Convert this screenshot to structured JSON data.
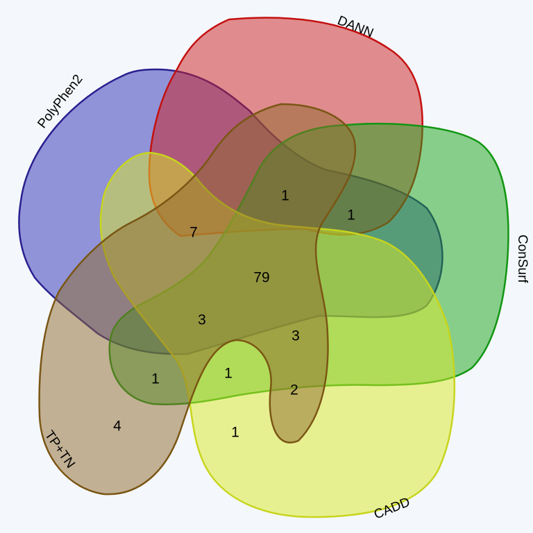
{
  "sets": {
    "polyphen2": {
      "label": "PolyPhen2",
      "fill": "#2b2fb4",
      "stroke": "#2a1f8f"
    },
    "dann": {
      "label": "DANN",
      "fill": "#cc1f1f",
      "stroke": "#c41010"
    },
    "consurf": {
      "label": "ConSurf",
      "fill": "#1ca51c",
      "stroke": "#129612"
    },
    "cadd": {
      "label": "CADD",
      "fill": "#d9ea28",
      "stroke": "#c7d51d"
    },
    "tptn": {
      "label": "TP+TN",
      "fill": "#8d6a2e",
      "stroke": "#7a5614"
    }
  },
  "regions": {
    "polyphen2_dann_consurf": "1",
    "dann_consurf": "1",
    "polyphen2_dann_cadd_tptn": "7",
    "all": "79",
    "polyphen2_cadd_tptn": "3",
    "dann_consurf_cadd_tptn": "3",
    "polyphen2_consurf_tptn": "1",
    "consurf_cadd_tptn": "1",
    "dann_cadd_tptn": "2",
    "tptn_only": "4",
    "cadd_tptn": "1"
  }
}
